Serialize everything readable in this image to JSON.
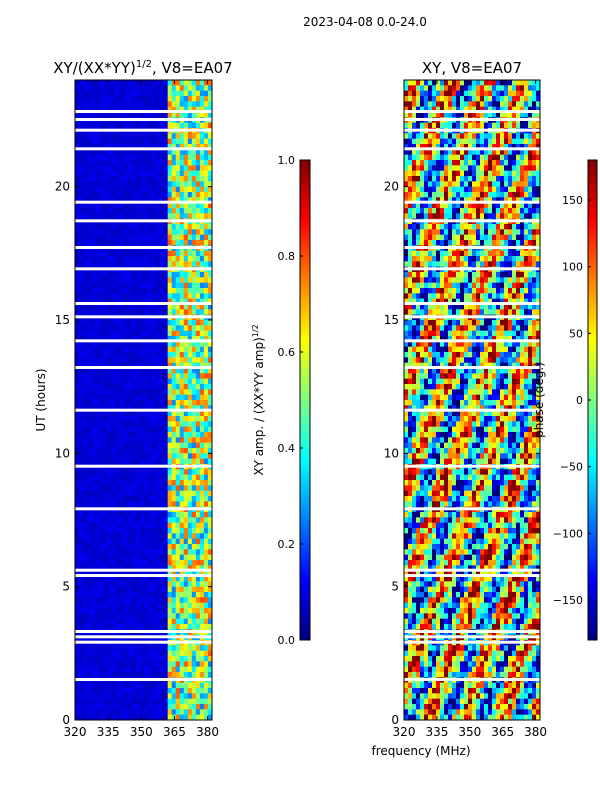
{
  "suptitle": "2023-04-08 0.0-24.0",
  "colors": {
    "jet": [
      "#00007f",
      "#0000ff",
      "#007fff",
      "#00ffff",
      "#7fff7f",
      "#ffff00",
      "#ff7f00",
      "#ff0000",
      "#7f0000"
    ],
    "gap": "#ffffff",
    "axis": "#000000"
  },
  "chart_data": [
    {
      "type": "heatmap",
      "title_main": "XY/(XX*YY)",
      "title_sup": "1/2",
      "title_rest": ", V8=EA07",
      "xlabel": "",
      "ylabel": "UT (hours)",
      "xlim": [
        320,
        382
      ],
      "ylim": [
        0,
        24
      ],
      "x_ticks": [
        320,
        335,
        350,
        365,
        380
      ],
      "y_ticks": [
        0,
        5,
        10,
        15,
        20
      ],
      "colorbar": {
        "label": "XY amp. / (XX*YY amp)",
        "label_sup": "1/2",
        "range": [
          0.0,
          1.0
        ],
        "ticks": [
          "0.0",
          "0.2",
          "0.4",
          "0.6",
          "0.8",
          "1.0"
        ],
        "tick_values": [
          0.0,
          0.2,
          0.4,
          0.6,
          0.8,
          1.0
        ]
      }
    },
    {
      "type": "heatmap",
      "title": "XY, V8=EA07",
      "xlabel": "frequency (MHz)",
      "ylabel": "",
      "xlim": [
        320,
        382
      ],
      "ylim": [
        0,
        24
      ],
      "x_ticks": [
        320,
        335,
        350,
        365,
        380
      ],
      "y_ticks": [
        0,
        5,
        10,
        15,
        20
      ],
      "colorbar": {
        "label": "phase (deg.)",
        "range": [
          -180,
          180
        ],
        "ticks": [
          "−150",
          "−100",
          "−50",
          "0",
          "50",
          "100",
          "150"
        ],
        "tick_values": [
          -150,
          -100,
          -50,
          0,
          50,
          100,
          150
        ]
      }
    }
  ]
}
